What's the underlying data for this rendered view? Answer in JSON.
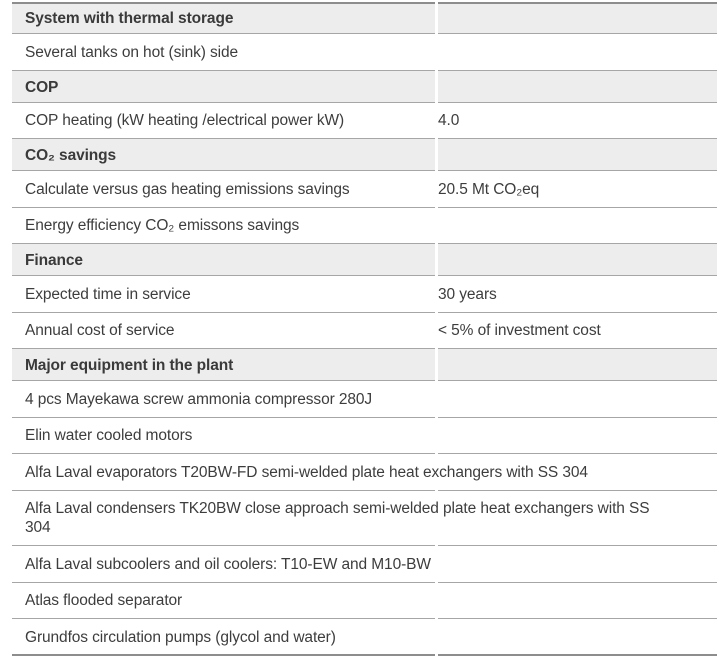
{
  "colors": {
    "header_background": "#ededed",
    "row_rule": "#a6a6a6",
    "outer_rule": "#8d8d8d",
    "text": "#3d3d3d",
    "page_background": "#ffffff"
  },
  "table": {
    "sections": [
      {
        "header": "System with thermal storage",
        "rows": [
          {
            "label": "Several tanks on hot (sink) side"
          }
        ]
      },
      {
        "header": "COP",
        "rows": [
          {
            "label": "COP heating (kW heating /electrical power kW)",
            "value": "4.0"
          }
        ]
      },
      {
        "header": "CO₂ savings",
        "rows": [
          {
            "label": "Calculate versus gas heating emissions savings",
            "value": "20.5 Mt CO₂eq"
          },
          {
            "label": "Energy efficiency CO₂ emissons savings"
          }
        ]
      },
      {
        "header": "Finance",
        "rows": [
          {
            "label": "Expected time in service",
            "value": "30 years"
          },
          {
            "label": "Annual cost of service",
            "value": "< 5% of investment cost"
          }
        ]
      },
      {
        "header": "Major equipment in the plant",
        "rows": [
          {
            "label": "4 pcs Mayekawa screw ammonia compressor 280J"
          },
          {
            "label": "Elin water cooled motors"
          },
          {
            "label": "Alfa Laval evaporators T20BW-FD semi-welded plate heat exchangers with SS 304"
          },
          {
            "label": "Alfa Laval condensers TK20BW close approach semi-welded plate heat exchangers with SS 304"
          },
          {
            "label": "Alfa Laval subcoolers and oil coolers: T10-EW and M10-BW"
          },
          {
            "label": "Atlas flooded separator"
          },
          {
            "label": "Grundfos circulation pumps (glycol and water)"
          }
        ]
      }
    ]
  }
}
